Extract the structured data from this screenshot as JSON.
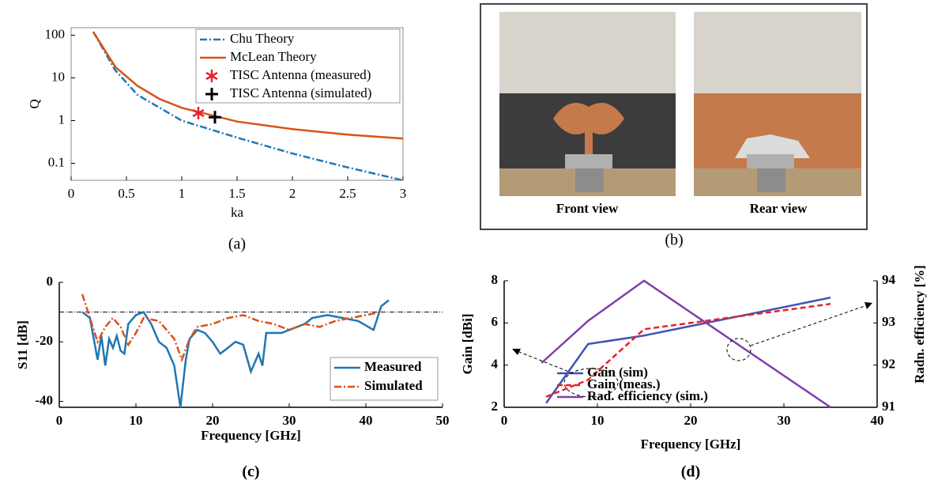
{
  "chart_data": [
    {
      "type": "line",
      "xlabel": "ka",
      "ylabel": "Q",
      "caption": "(a)",
      "ylog": true,
      "xlim": [
        0,
        3
      ],
      "xticks": [
        0,
        0.5,
        1,
        1.5,
        2,
        2.5,
        3
      ],
      "ylim": [
        0.04,
        150
      ],
      "yticks": [
        0.1,
        1,
        10,
        100
      ],
      "legend": "upper right",
      "series": [
        {
          "name": "Chu Theory",
          "color": "#1f77b4",
          "style": "dashdot",
          "x": [
            0.2,
            0.4,
            0.6,
            0.8,
            1,
            1.5,
            2,
            2.5,
            3
          ],
          "values": [
            120,
            15,
            4,
            2,
            1,
            0.4,
            0.17,
            0.08,
            0.04
          ]
        },
        {
          "name": "McLean Theory",
          "color": "#d95319",
          "style": "solid",
          "x": [
            0.2,
            0.4,
            0.6,
            0.8,
            1,
            1.5,
            2,
            2.5,
            3
          ],
          "values": [
            120,
            18,
            6.5,
            3.2,
            2,
            0.95,
            0.63,
            0.47,
            0.38
          ]
        },
        {
          "name": "TISC Antenna (measured)",
          "color": "#e8222a",
          "style": "star",
          "x": [
            1.15
          ],
          "values": [
            1.5
          ]
        },
        {
          "name": "TISC Antenna (simulated)",
          "color": "#000000",
          "style": "plus",
          "x": [
            1.3
          ],
          "values": [
            1.2
          ]
        }
      ]
    },
    {
      "type": "line",
      "xlabel": "Frequency [GHz]",
      "ylabel": "S11 [dB]",
      "caption": "(c)",
      "xlim": [
        0,
        50
      ],
      "xticks": [
        0,
        10,
        20,
        30,
        40,
        50
      ],
      "ylim": [
        -42,
        0
      ],
      "yticks": [
        0,
        -20,
        -40
      ],
      "reference_line": -10,
      "legend": "lower right",
      "series": [
        {
          "name": "Measured",
          "color": "#1f77b4",
          "style": "solid",
          "x": [
            3,
            4,
            5,
            5.5,
            6,
            6.5,
            7,
            7.5,
            8,
            8.5,
            9,
            10,
            11,
            12,
            13,
            14,
            15,
            15.8,
            16.5,
            17,
            18,
            19,
            20,
            21,
            22,
            23,
            24,
            25,
            26,
            26.5,
            27,
            28,
            29,
            30,
            31,
            32,
            33,
            35,
            37,
            39,
            41,
            42,
            43
          ],
          "values": [
            -10,
            -12,
            -26,
            -18,
            -28,
            -19,
            -22,
            -18,
            -23,
            -24,
            -14,
            -11,
            -10,
            -14,
            -20,
            -22,
            -28,
            -42,
            -26,
            -19,
            -16,
            -17,
            -20,
            -24,
            -22,
            -20,
            -21,
            -30,
            -24,
            -28,
            -17,
            -17,
            -17,
            -16,
            -15,
            -14,
            -12,
            -11,
            -12,
            -13,
            -16,
            -8,
            -6
          ]
        },
        {
          "name": "Simulated",
          "color": "#d95319",
          "style": "dashdot",
          "x": [
            3,
            4,
            5,
            6,
            7,
            8,
            9,
            10,
            11,
            13,
            15,
            16,
            17,
            18,
            20,
            22,
            24,
            26,
            28,
            30,
            32,
            34,
            36,
            38,
            40,
            42
          ],
          "values": [
            -4,
            -12,
            -20,
            -15,
            -12,
            -15,
            -21,
            -17,
            -12,
            -13,
            -19,
            -26,
            -19,
            -15,
            -14,
            -12,
            -11,
            -13,
            -14,
            -16,
            -14,
            -15,
            -13,
            -12,
            -11,
            -10
          ]
        }
      ]
    },
    {
      "type": "line",
      "xlabel": "Frequency [GHz]",
      "ylabel": "Gain [dBi]",
      "y2label": "Radn. efficiency [%]",
      "caption": "(d)",
      "xlim": [
        0,
        40
      ],
      "xticks": [
        0,
        10,
        20,
        30,
        40
      ],
      "ylim": [
        2,
        8
      ],
      "yticks": [
        2,
        4,
        6,
        8
      ],
      "y2lim": [
        91,
        94
      ],
      "y2ticks": [
        91,
        92,
        93,
        94
      ],
      "legend": "lower center",
      "series": [
        {
          "name": "Gain (sim)",
          "color": "#3f51b5",
          "style": "solid",
          "x": [
            4.5,
            9,
            15,
            35
          ],
          "values": [
            2.2,
            5,
            5.4,
            7.2
          ]
        },
        {
          "name": "Gain (meas.)",
          "color": "#e8222a",
          "style": "dash",
          "x": [
            4.5,
            9,
            15,
            35
          ],
          "values": [
            2.5,
            3.3,
            5.7,
            6.9
          ]
        },
        {
          "name": "Rad. efficiency (sim.)",
          "color": "#7e3fa8",
          "style": "solid",
          "axis": "y2",
          "x": [
            4,
            9,
            15,
            35
          ],
          "values": [
            92.05,
            93.05,
            94,
            91
          ]
        }
      ]
    }
  ],
  "photo_panel": {
    "labels": [
      "Front view",
      "Rear view"
    ],
    "caption": "(b)"
  }
}
